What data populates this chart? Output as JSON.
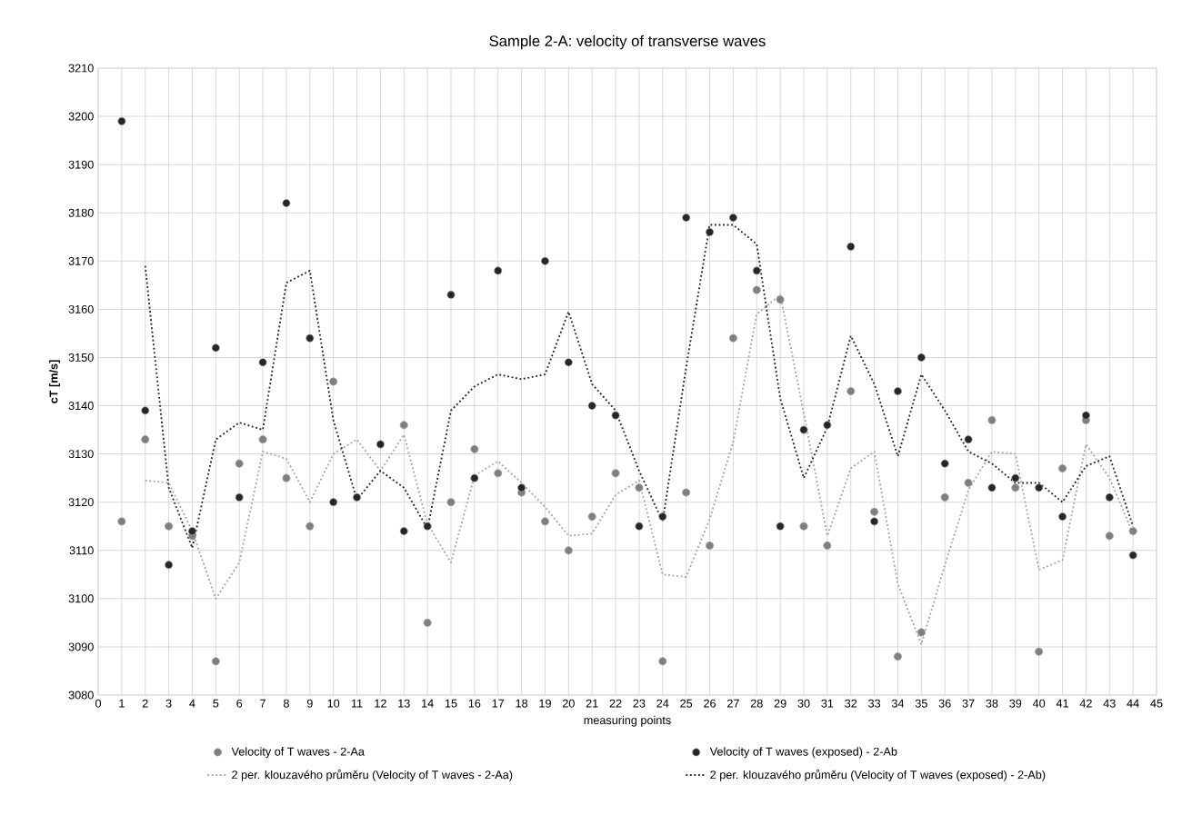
{
  "chart_data": {
    "type": "scatter",
    "title": "Sample 2-A: velocity of transverse waves",
    "xlabel": "measuring points",
    "ylabel": "cT [m/s]",
    "x": [
      1,
      2,
      3,
      4,
      5,
      6,
      7,
      8,
      9,
      10,
      11,
      12,
      13,
      14,
      15,
      16,
      17,
      18,
      19,
      20,
      21,
      22,
      23,
      24,
      25,
      26,
      27,
      28,
      29,
      30,
      31,
      32,
      33,
      34,
      35,
      36,
      37,
      38,
      39,
      40,
      41,
      42,
      43,
      44
    ],
    "xlim": [
      0,
      45
    ],
    "xticks": [
      0,
      1,
      2,
      3,
      4,
      5,
      6,
      7,
      8,
      9,
      10,
      11,
      12,
      13,
      14,
      15,
      16,
      17,
      18,
      19,
      20,
      21,
      22,
      23,
      24,
      25,
      26,
      27,
      28,
      29,
      30,
      31,
      32,
      33,
      34,
      35,
      36,
      37,
      38,
      39,
      40,
      41,
      42,
      43,
      44,
      45
    ],
    "ylim": [
      3080,
      3210
    ],
    "yticks": [
      3080,
      3090,
      3100,
      3110,
      3120,
      3130,
      3140,
      3150,
      3160,
      3170,
      3180,
      3190,
      3200,
      3210
    ],
    "grid": true,
    "legend": "bottom",
    "series": [
      {
        "name": "Velocity of T waves - 2-Aa",
        "type": "scatter",
        "marker": "circle",
        "color": "#7f7f7f",
        "values": [
          3116,
          3133,
          3115,
          3113,
          3087,
          3128,
          3133,
          3125,
          3115,
          3145,
          null,
          null,
          3136,
          3095,
          3120,
          3131,
          3126,
          3122,
          3116,
          3110,
          3117,
          3126,
          3123,
          3087,
          3122,
          3111,
          3154,
          3164,
          3162,
          3115,
          3111,
          3143,
          3118,
          3088,
          3093,
          3121,
          3124,
          3137,
          3123,
          3089,
          3127,
          3137,
          3113,
          3114
        ]
      },
      {
        "name": "Velocity of T waves (exposed) - 2-Ab",
        "type": "scatter",
        "marker": "circle",
        "color": "#262626",
        "values": [
          3199,
          3139,
          3107,
          3114,
          3152,
          3121,
          3149,
          3182,
          3154,
          3120,
          3121,
          3132,
          3114,
          3115,
          3163,
          3125,
          3168,
          3123,
          3170,
          3149,
          3140,
          3138,
          3115,
          3117,
          3179,
          3176,
          3179,
          3168,
          3115,
          3135,
          3136,
          3173,
          3116,
          3143,
          3150,
          3128,
          3133,
          3123,
          3125,
          3123,
          3117,
          3138,
          3121,
          3109
        ]
      },
      {
        "name": "2 per. klouzavého průměru (Velocity of T waves - 2-Aa)",
        "type": "line",
        "marker": "none",
        "line_style": "dotted",
        "color": "#a6a6a6",
        "x": [
          2,
          3,
          4,
          5,
          6,
          7,
          8,
          9,
          10,
          11,
          12,
          13,
          14,
          15,
          16,
          17,
          18,
          19,
          20,
          21,
          22,
          23,
          24,
          25,
          26,
          27,
          28,
          29,
          30,
          31,
          32,
          33,
          34,
          35,
          36,
          37,
          38,
          39,
          40,
          41,
          42,
          43,
          44
        ],
        "values": [
          3124.5,
          3124,
          3114,
          3100,
          3107.5,
          3130.5,
          3129,
          3120,
          3130,
          3133,
          3126.5,
          3134,
          3115.5,
          3107.5,
          3125.5,
          3128.5,
          3124,
          3119,
          3113,
          3113.5,
          3121.5,
          3124.5,
          3105,
          3104.5,
          3116.5,
          3132.5,
          3159,
          3163,
          3138.5,
          3113,
          3127,
          3130.5,
          3103,
          3090.5,
          3107,
          3122.5,
          3130.5,
          3130,
          3106,
          3108,
          3132,
          3125,
          3113.5
        ]
      },
      {
        "name": "2 per. klouzavého průměru (Velocity of T waves (exposed) - 2-Ab)",
        "type": "line",
        "marker": "none",
        "line_style": "dotted",
        "color": "#262626",
        "x": [
          2,
          3,
          4,
          5,
          6,
          7,
          8,
          9,
          10,
          11,
          12,
          13,
          14,
          15,
          16,
          17,
          18,
          19,
          20,
          21,
          22,
          23,
          24,
          25,
          26,
          27,
          28,
          29,
          30,
          31,
          32,
          33,
          34,
          35,
          36,
          37,
          38,
          39,
          40,
          41,
          42,
          43,
          44
        ],
        "values": [
          3169,
          3123,
          3110.5,
          3133,
          3136.5,
          3135,
          3165.5,
          3168,
          3137,
          3120.5,
          3126.5,
          3123,
          3114.5,
          3139,
          3144,
          3146.5,
          3145.5,
          3146.5,
          3159.5,
          3144.5,
          3139,
          3126.5,
          3116,
          3148,
          3177.5,
          3177.5,
          3173.5,
          3141.5,
          3125,
          3135.5,
          3154.5,
          3144.5,
          3129.5,
          3146.5,
          3139,
          3130.5,
          3128,
          3124,
          3124,
          3120,
          3127.5,
          3129.5,
          3115
        ]
      }
    ]
  }
}
